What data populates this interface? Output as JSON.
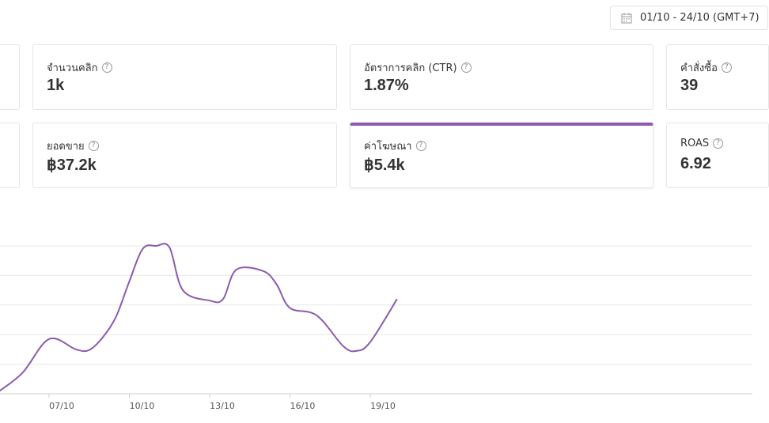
{
  "date_range": {
    "label": "01/10 - 24/10 (GMT+7)",
    "icon": "calendar-icon"
  },
  "metrics": [
    {
      "key": "clicks",
      "label": "จำนวนคลิก",
      "value": "1k",
      "selected": false
    },
    {
      "key": "ctr",
      "label": "อัตราการคลิก (CTR)",
      "value": "1.87%",
      "selected": false
    },
    {
      "key": "orders",
      "label": "คำสั่งซื้อ",
      "value": "39",
      "selected": false
    },
    {
      "key": "sales",
      "label": "ยอดขาย",
      "value": "฿37.2k",
      "selected": false
    },
    {
      "key": "ad_spend",
      "label": "ค่าโฆษณา",
      "value": "฿5.4k",
      "selected": true
    },
    {
      "key": "roas",
      "label": "ROAS",
      "value": "6.92",
      "selected": false
    }
  ],
  "help_symbol": "?",
  "accent_color": "#8c5ab0",
  "chart_data": {
    "type": "line",
    "title": "",
    "xlabel": "",
    "ylabel": "",
    "grid": true,
    "x_ticks": [
      "07/10",
      "10/10",
      "13/10",
      "16/10",
      "19/10"
    ],
    "series": [
      {
        "color": "#8c5ab0",
        "x": [
          "05/10",
          "06/10",
          "07/10",
          "08/10",
          "08/10",
          "09/10",
          "09/10",
          "10/10",
          "10/10",
          "11/10",
          "11/10",
          "12/10",
          "13/10",
          "13/10",
          "14/10",
          "15/10",
          "15/10",
          "16/10",
          "17/10",
          "18/10",
          "18/10",
          "19/10",
          "20/10"
        ],
        "values": [
          0,
          70,
          185,
          150,
          148,
          190,
          260,
          380,
          490,
          500,
          495,
          350,
          315,
          320,
          420,
          415,
          370,
          290,
          265,
          160,
          145,
          175,
          320
        ]
      }
    ]
  }
}
